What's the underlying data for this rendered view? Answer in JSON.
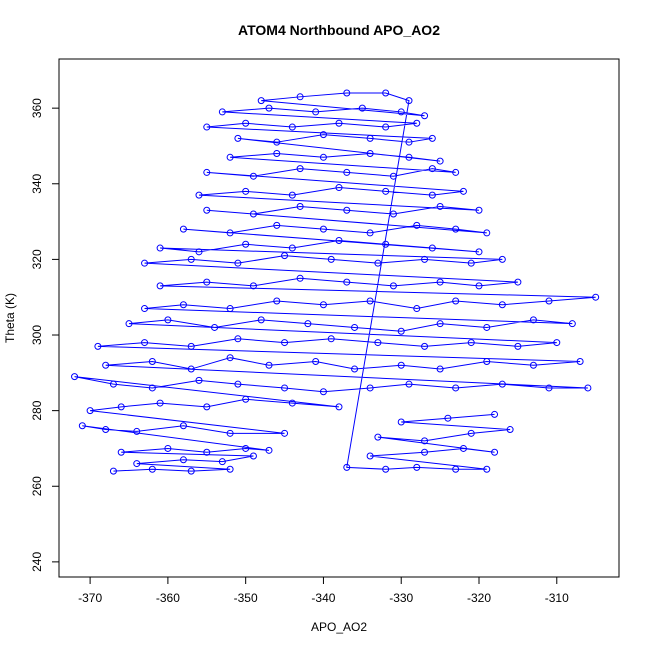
{
  "chart_data": {
    "type": "scatter",
    "title": "ATOM4 Northbound APO_AO2",
    "xlabel": "APO_AO2",
    "ylabel": "Theta (K)",
    "xlim": [
      -374,
      -302
    ],
    "ylim": [
      236,
      373
    ],
    "xticks": [
      -370,
      -360,
      -350,
      -340,
      -330,
      -320,
      -310
    ],
    "yticks": [
      240,
      260,
      280,
      300,
      320,
      340,
      360
    ],
    "xtick_labels": [
      "-370",
      "-360",
      "-350",
      "-340",
      "-330",
      "-320",
      "-310"
    ],
    "ytick_labels": [
      "240",
      "260",
      "280",
      "300",
      "320",
      "340",
      "360"
    ],
    "grid": false,
    "marker": "open-circle",
    "connected": true,
    "color": "#0000ff",
    "series": [
      {
        "values_note_free": true,
        "points": [
          [
            -367,
            264
          ],
          [
            -362,
            264.5
          ],
          [
            -357,
            264
          ],
          [
            -352,
            264.5
          ],
          [
            -364,
            266
          ],
          [
            -358,
            267
          ],
          [
            -353,
            266.5
          ],
          [
            -349,
            268
          ],
          [
            -366,
            269
          ],
          [
            -360,
            270
          ],
          [
            -355,
            269
          ],
          [
            -350,
            270
          ],
          [
            -347,
            269.5
          ],
          [
            -371,
            276
          ],
          [
            -368,
            275
          ],
          [
            -364,
            274.5
          ],
          [
            -358,
            276
          ],
          [
            -352,
            274
          ],
          [
            -345,
            274
          ],
          [
            -370,
            280
          ],
          [
            -366,
            281
          ],
          [
            -361,
            282
          ],
          [
            -355,
            281
          ],
          [
            -350,
            283
          ],
          [
            -344,
            282
          ],
          [
            -338,
            281
          ],
          [
            -372,
            289
          ],
          [
            -367,
            287
          ],
          [
            -362,
            286
          ],
          [
            -356,
            288
          ],
          [
            -351,
            287
          ],
          [
            -345,
            286
          ],
          [
            -340,
            285
          ],
          [
            -334,
            286
          ],
          [
            -329,
            287
          ],
          [
            -323,
            286
          ],
          [
            -317,
            287
          ],
          [
            -311,
            286
          ],
          [
            -306,
            286
          ],
          [
            -368,
            292
          ],
          [
            -362,
            293
          ],
          [
            -357,
            291
          ],
          [
            -352,
            294
          ],
          [
            -347,
            292
          ],
          [
            -341,
            293
          ],
          [
            -336,
            291
          ],
          [
            -330,
            292
          ],
          [
            -325,
            291
          ],
          [
            -319,
            293
          ],
          [
            -313,
            292
          ],
          [
            -307,
            293
          ],
          [
            -369,
            297
          ],
          [
            -363,
            298
          ],
          [
            -357,
            297
          ],
          [
            -351,
            299
          ],
          [
            -345,
            298
          ],
          [
            -339,
            299
          ],
          [
            -333,
            298
          ],
          [
            -327,
            297
          ],
          [
            -321,
            298
          ],
          [
            -315,
            297
          ],
          [
            -310,
            298
          ],
          [
            -365,
            303
          ],
          [
            -360,
            304
          ],
          [
            -354,
            302
          ],
          [
            -348,
            304
          ],
          [
            -342,
            303
          ],
          [
            -336,
            302
          ],
          [
            -330,
            301
          ],
          [
            -325,
            303
          ],
          [
            -319,
            302
          ],
          [
            -313,
            304
          ],
          [
            -308,
            303
          ],
          [
            -363,
            307
          ],
          [
            -358,
            308
          ],
          [
            -352,
            307
          ],
          [
            -346,
            309
          ],
          [
            -340,
            308
          ],
          [
            -334,
            309
          ],
          [
            -328,
            307
          ],
          [
            -323,
            309
          ],
          [
            -317,
            308
          ],
          [
            -311,
            309
          ],
          [
            -305,
            310
          ],
          [
            -361,
            313
          ],
          [
            -355,
            314
          ],
          [
            -349,
            313
          ],
          [
            -343,
            315
          ],
          [
            -337,
            314
          ],
          [
            -331,
            313
          ],
          [
            -325,
            314
          ],
          [
            -320,
            313
          ],
          [
            -315,
            314
          ],
          [
            -363,
            319
          ],
          [
            -357,
            320
          ],
          [
            -351,
            319
          ],
          [
            -345,
            321
          ],
          [
            -339,
            320
          ],
          [
            -333,
            319
          ],
          [
            -327,
            320
          ],
          [
            -321,
            319
          ],
          [
            -317,
            320
          ],
          [
            -361,
            323
          ],
          [
            -356,
            322
          ],
          [
            -350,
            324
          ],
          [
            -344,
            323
          ],
          [
            -338,
            325
          ],
          [
            -332,
            324
          ],
          [
            -326,
            323
          ],
          [
            -320,
            322
          ],
          [
            -358,
            328
          ],
          [
            -352,
            327
          ],
          [
            -346,
            329
          ],
          [
            -340,
            328
          ],
          [
            -334,
            327
          ],
          [
            -328,
            329
          ],
          [
            -323,
            328
          ],
          [
            -319,
            327
          ],
          [
            -355,
            333
          ],
          [
            -349,
            332
          ],
          [
            -343,
            334
          ],
          [
            -337,
            333
          ],
          [
            -331,
            332
          ],
          [
            -325,
            334
          ],
          [
            -320,
            333
          ],
          [
            -356,
            337
          ],
          [
            -350,
            338
          ],
          [
            -344,
            337
          ],
          [
            -338,
            339
          ],
          [
            -332,
            338
          ],
          [
            -326,
            337
          ],
          [
            -322,
            338
          ],
          [
            -355,
            343
          ],
          [
            -349,
            342
          ],
          [
            -343,
            344
          ],
          [
            -337,
            343
          ],
          [
            -331,
            342
          ],
          [
            -326,
            344
          ],
          [
            -323,
            343
          ],
          [
            -352,
            347
          ],
          [
            -346,
            348
          ],
          [
            -340,
            347
          ],
          [
            -334,
            348
          ],
          [
            -329,
            347
          ],
          [
            -325,
            346
          ],
          [
            -351,
            352
          ],
          [
            -346,
            351
          ],
          [
            -340,
            353
          ],
          [
            -334,
            352
          ],
          [
            -329,
            351
          ],
          [
            -326,
            352
          ],
          [
            -355,
            355
          ],
          [
            -350,
            356
          ],
          [
            -344,
            355
          ],
          [
            -338,
            356
          ],
          [
            -332,
            355
          ],
          [
            -328,
            356
          ],
          [
            -353,
            359
          ],
          [
            -347,
            360
          ],
          [
            -341,
            359
          ],
          [
            -335,
            360
          ],
          [
            -330,
            359
          ],
          [
            -327,
            358
          ],
          [
            -348,
            362
          ],
          [
            -343,
            363
          ],
          [
            -337,
            364
          ],
          [
            -332,
            364
          ],
          [
            -329,
            362
          ],
          [
            -337,
            265
          ],
          [
            -332,
            264.5
          ],
          [
            -328,
            265
          ],
          [
            -323,
            264.5
          ],
          [
            -319,
            264.5
          ],
          [
            -334,
            268
          ],
          [
            -327,
            269
          ],
          [
            -322,
            270
          ],
          [
            -318,
            269
          ],
          [
            -333,
            273
          ],
          [
            -327,
            272
          ],
          [
            -321,
            274
          ],
          [
            -316,
            275
          ],
          [
            -330,
            277
          ],
          [
            -324,
            278
          ],
          [
            -318,
            279
          ]
        ]
      }
    ]
  }
}
